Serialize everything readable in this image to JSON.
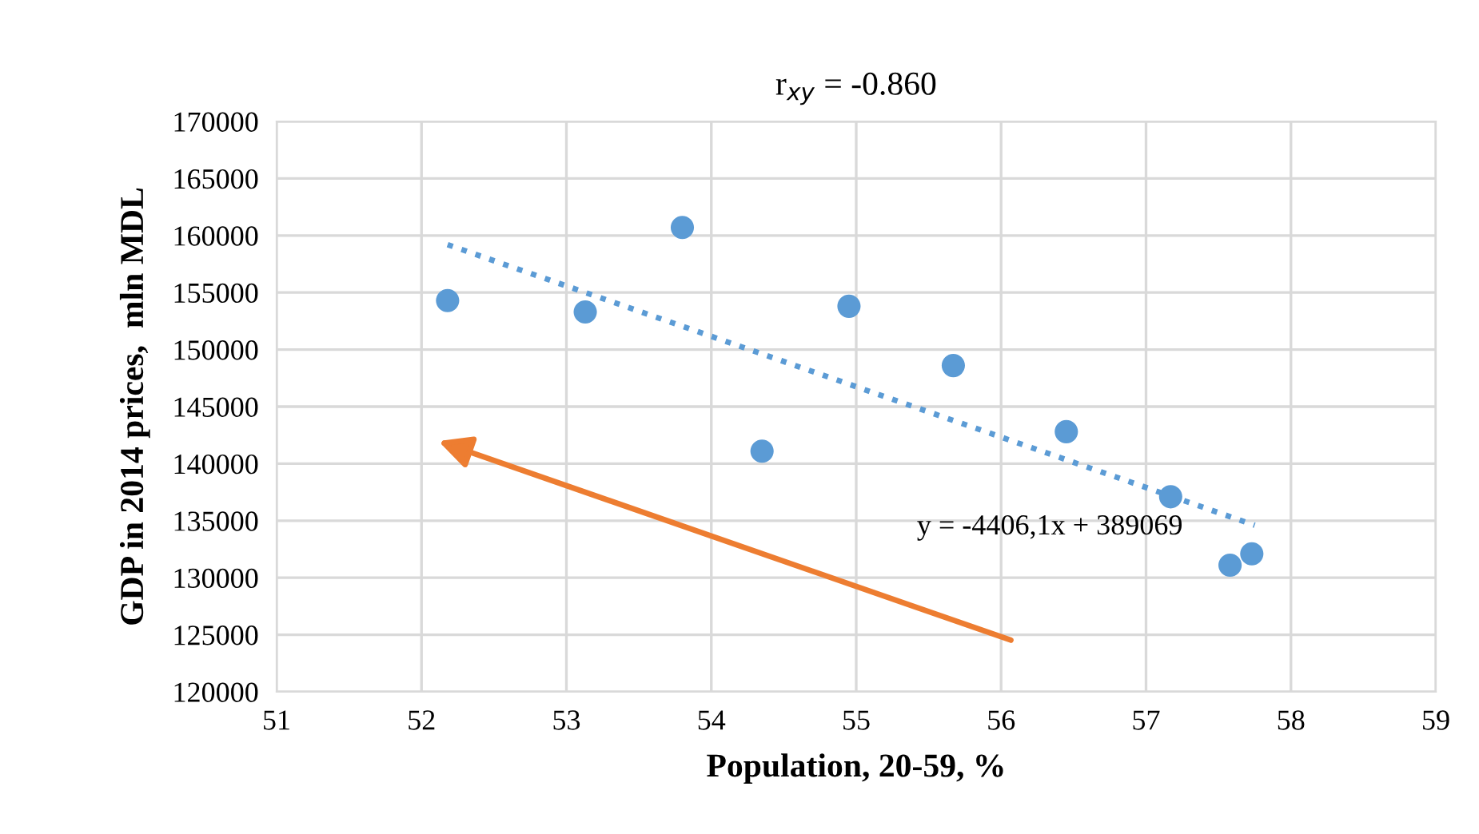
{
  "chart_data": {
    "type": "scatter",
    "title": "r$_{xy}$ = -0.860",
    "xlabel": "Population, 20-59, %",
    "ylabel": "GDP in 2014 prices,  mln MDL",
    "x": [
      52.18,
      53.13,
      53.8,
      54.35,
      54.95,
      55.67,
      56.45,
      57.17,
      57.58,
      57.73
    ],
    "series": [
      {
        "color": "#5b9bd5",
        "marker": "circle",
        "values": [
          154300,
          153300,
          160700,
          141100,
          153800,
          148600,
          142800,
          137100,
          131100,
          132100
        ]
      },
      {
        "type": "line",
        "color": "#5b9bd5",
        "line_style": "dotted",
        "marker": "none",
        "x": [
          52.18,
          57.75
        ],
        "values": [
          159200,
          134600
        ]
      }
    ],
    "annotations": [
      "y = -4406,1x + 389069"
    ],
    "xlim": [
      51,
      59
    ],
    "xticks": [
      51,
      52,
      53,
      54,
      55,
      56,
      57,
      58,
      59
    ],
    "ylim": [
      120000,
      170000
    ],
    "yticks": [
      120000,
      125000,
      130000,
      135000,
      140000,
      145000,
      150000,
      155000,
      160000,
      165000,
      170000
    ],
    "grid": true,
    "legend": false
  }
}
